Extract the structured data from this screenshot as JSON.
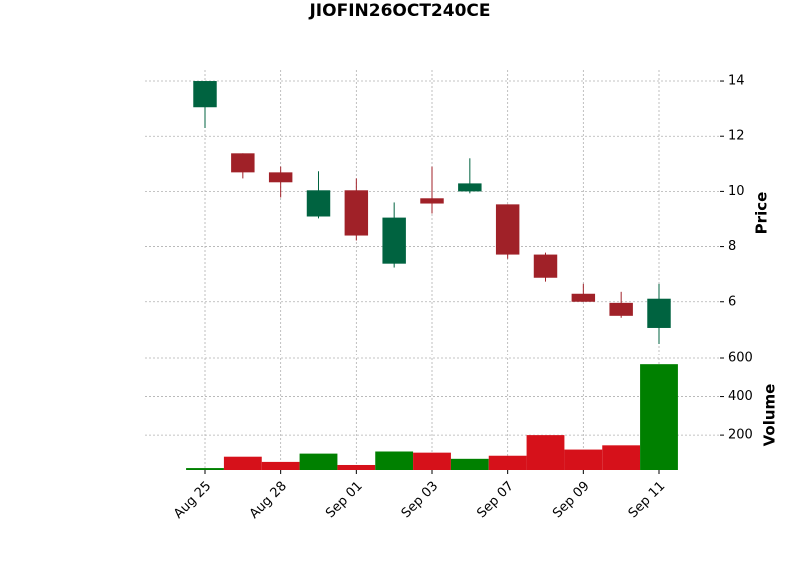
{
  "chart_data": {
    "type": "candlestick",
    "title": "JIOFIN26OCT240CE",
    "categories": [
      "Aug 25",
      null,
      "Aug 28",
      null,
      "Sep 01",
      null,
      "Sep 03",
      null,
      "Sep 07",
      null,
      "Sep 09",
      null,
      "Sep 11"
    ],
    "open": [
      13.05,
      11.38,
      10.69,
      9.09,
      10.04,
      7.38,
      9.75,
      10.0,
      9.53,
      7.71,
      6.29,
      5.96,
      5.05
    ],
    "high": [
      14.0,
      11.38,
      10.9,
      10.73,
      10.47,
      9.6,
      10.9,
      11.2,
      9.53,
      7.78,
      6.65,
      6.36,
      6.65
    ],
    "low": [
      12.3,
      10.47,
      9.78,
      9.02,
      8.22,
      7.24,
      9.2,
      9.93,
      7.56,
      6.73,
      6.0,
      5.42,
      4.47
    ],
    "close": [
      14.0,
      10.69,
      10.33,
      10.04,
      8.4,
      9.05,
      9.56,
      10.29,
      7.71,
      6.87,
      6.0,
      5.49,
      6.11
    ],
    "volume": [
      29,
      88,
      61,
      104,
      45,
      115,
      109,
      77,
      93,
      200,
      125,
      147,
      568
    ],
    "ylabel": "Price",
    "ylim": [
      4.07,
      14.4
    ],
    "yticks": [
      6,
      8,
      10,
      12,
      14
    ],
    "volume_label": "Volume",
    "volume_ylim": [
      19,
      600
    ],
    "volume_yticks": [
      200,
      400,
      600
    ],
    "up_color": "#006340",
    "down_color": "#a02128",
    "volume_up_color": "#008000",
    "volume_down_color": "#d6111a",
    "grid": true
  }
}
